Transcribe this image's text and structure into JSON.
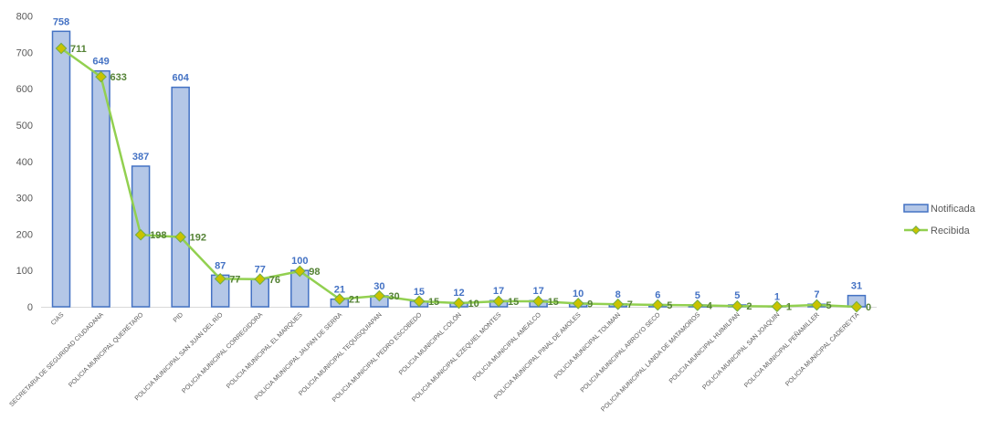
{
  "chart_data": {
    "type": "bar+line",
    "title": "",
    "xlabel": "",
    "ylabel": "",
    "ylim": [
      0,
      800
    ],
    "yticks": [
      0,
      100,
      200,
      300,
      400,
      500,
      600,
      700,
      800
    ],
    "grid": false,
    "legend_position": "right",
    "categories": [
      "CIAS",
      "SECRETARIA DE SEGURIDAD CIUDADANA",
      "POLICIA MUNICIPAL QUERÉTARO",
      "PID",
      "POLICIA MUNICIPAL SAN JUAN DEL RÍO",
      "POLICIA MUNICIPAL CORREGIDORA",
      "POLICIA MUNICIPAL EL MARQUES",
      "POLICIA MUNICIPAL JALPAN DE SERRA",
      "POLICIA MUNICIPAL TEQUISQUIAPAN",
      "POLICIA MUNICIPAL PEDRO ESCOBEDO",
      "POLICIA MUNICIPAL COLÓN",
      "POLICIA MUNICIPAL EZEQUIEL MONTES",
      "POLICIA MUNICIPAL AMEALCO",
      "POLICIA MUNICIPAL PINAL DE AMOLES",
      "POLICIA MUNICIPAL TOLIMAN",
      "POLICIA MUNICIPAL ARROYO SECO",
      "POLICIA MUNICIPAL LANDA DE MATAMOROS",
      "POLICIA MUNICIPAL HUIMILPAN",
      "POLICIA MUNICIPAL SAN JOAQUIN",
      "POLICIA MUNICIPAL PEÑAMILLER",
      "POLICIA MUNICIPAL CADEREYTA"
    ],
    "series": [
      {
        "name": "Notificada",
        "type": "bar",
        "color": "#B4C7E7",
        "stroke": "#4472C4",
        "values": [
          758,
          649,
          387,
          604,
          87,
          77,
          100,
          21,
          30,
          15,
          12,
          17,
          17,
          10,
          8,
          6,
          5,
          5,
          1,
          7,
          31
        ]
      },
      {
        "name": "Recibida",
        "type": "line",
        "color": "#92D050",
        "marker": "#C9C300",
        "values": [
          711,
          633,
          198,
          192,
          77,
          76,
          98,
          21,
          30,
          15,
          10,
          15,
          15,
          9,
          7,
          5,
          4,
          2,
          1,
          5,
          0
        ]
      }
    ]
  }
}
